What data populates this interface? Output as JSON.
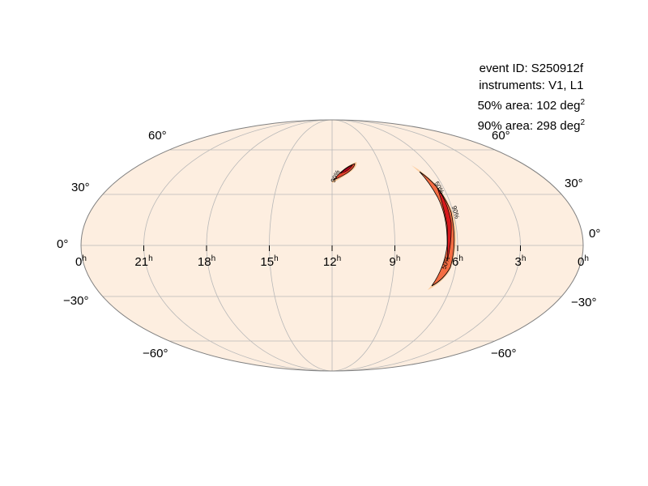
{
  "info": {
    "event_id": "event ID: S250912f",
    "instruments": "instruments: V1, L1",
    "area50_prefix": "50% area: 102 deg",
    "area90_prefix": "90% area: 298 deg",
    "area_exponent": "2"
  },
  "projection": "mollweide",
  "colors": {
    "background": "#fdeee0",
    "grid": "#b0b0b0",
    "outline": "#808080",
    "high_prob": "#d7191c",
    "mid_prob": "#f46d43",
    "low_prob": "#fdae61"
  },
  "ra_labels": [
    {
      "h": "0",
      "sup": "h"
    },
    {
      "h": "21",
      "sup": "h"
    },
    {
      "h": "18",
      "sup": "h"
    },
    {
      "h": "15",
      "sup": "h"
    },
    {
      "h": "12",
      "sup": "h"
    },
    {
      "h": "9",
      "sup": "h"
    },
    {
      "h": "6",
      "sup": "h"
    },
    {
      "h": "3",
      "sup": "h"
    },
    {
      "h": "0",
      "sup": "h"
    }
  ],
  "dec_labels": [
    "60°",
    "30°",
    "0°",
    "−30°",
    "−60°"
  ],
  "contour_labels": {
    "c50": "50%",
    "c90": "90%"
  }
}
